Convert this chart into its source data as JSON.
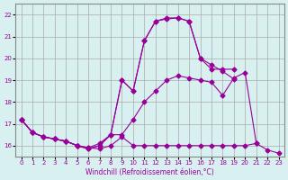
{
  "xlabel": "Windchill (Refroidissement éolien,°C)",
  "x_values": [
    0,
    1,
    2,
    3,
    4,
    5,
    6,
    7,
    8,
    9,
    10,
    11,
    12,
    13,
    14,
    15,
    16,
    17,
    18,
    19,
    20,
    21,
    22,
    23
  ],
  "series": [
    [
      17.2,
      16.6,
      16.4,
      16.3,
      16.2,
      16.0,
      15.9,
      15.85,
      16.0,
      16.4,
      16.0,
      16.0,
      16.0,
      16.0,
      16.0,
      16.0,
      16.0,
      16.0,
      16.0,
      16.0,
      16.0,
      16.1,
      15.8,
      15.65
    ],
    [
      17.2,
      16.6,
      16.4,
      16.3,
      16.2,
      16.0,
      15.9,
      16.1,
      16.5,
      16.5,
      17.2,
      18.0,
      18.5,
      19.0,
      19.2,
      19.1,
      19.0,
      18.9,
      18.3,
      19.1,
      19.35,
      16.1,
      null,
      null
    ],
    [
      17.2,
      16.6,
      16.4,
      16.3,
      16.2,
      16.0,
      15.85,
      16.0,
      16.5,
      19.0,
      18.5,
      20.8,
      21.7,
      21.8,
      21.85,
      21.7,
      20.0,
      19.7,
      19.4,
      19.05,
      null,
      null,
      null,
      null
    ],
    [
      17.2,
      16.6,
      16.4,
      16.3,
      16.2,
      16.0,
      15.85,
      16.0,
      16.5,
      19.0,
      18.5,
      20.8,
      21.7,
      21.85,
      21.85,
      21.7,
      20.0,
      19.5,
      19.5,
      19.5,
      null,
      null,
      null,
      null
    ]
  ],
  "line_color": "#990099",
  "bg_color": "#d8f0f0",
  "grid_color": "#aaaaaa",
  "ylim": [
    15.5,
    22.5
  ],
  "yticks": [
    16,
    17,
    18,
    19,
    20,
    21,
    22
  ],
  "xlim": [
    -0.5,
    23.5
  ]
}
